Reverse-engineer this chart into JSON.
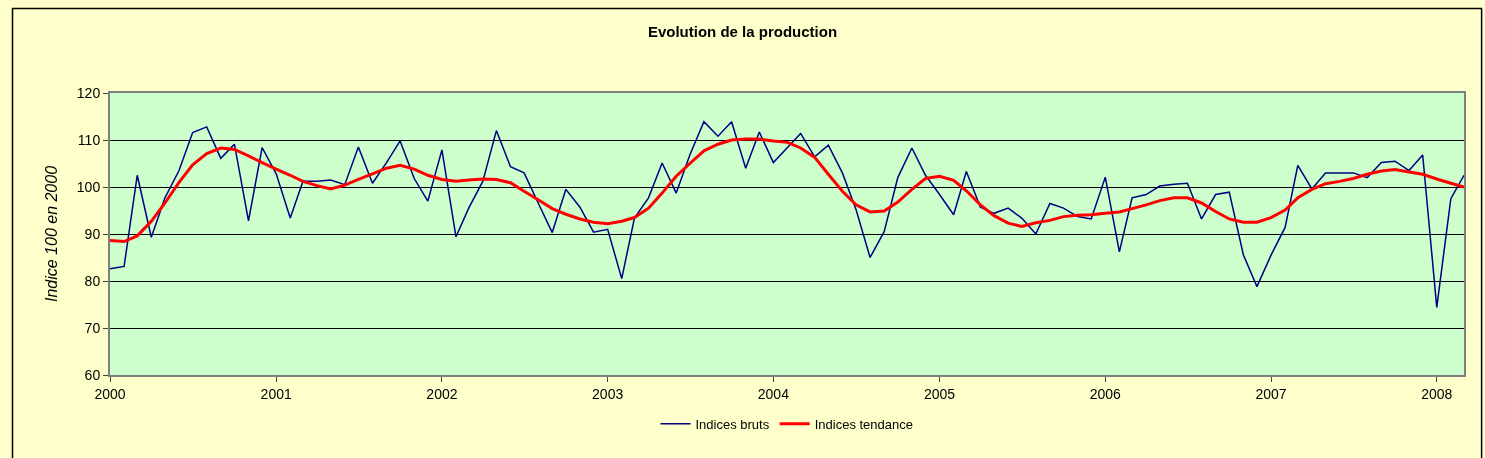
{
  "chart_data": {
    "type": "line",
    "title": "Evolution de la production",
    "ylabel": "Indice 100 en 2000",
    "x": [
      "2000-01",
      "2000-02",
      "2000-03",
      "2000-04",
      "2000-05",
      "2000-06",
      "2000-07",
      "2000-08",
      "2000-09",
      "2000-10",
      "2000-11",
      "2000-12",
      "2001-01",
      "2001-02",
      "2001-03",
      "2001-04",
      "2001-05",
      "2001-06",
      "2001-07",
      "2001-08",
      "2001-09",
      "2001-10",
      "2001-11",
      "2001-12",
      "2002-01",
      "2002-02",
      "2002-03",
      "2002-04",
      "2002-05",
      "2002-06",
      "2002-07",
      "2002-08",
      "2002-09",
      "2002-10",
      "2002-11",
      "2002-12",
      "2003-01",
      "2003-02",
      "2003-03",
      "2003-04",
      "2003-05",
      "2003-06",
      "2003-07",
      "2003-08",
      "2003-09",
      "2003-10",
      "2003-11",
      "2003-12",
      "2004-01",
      "2004-02",
      "2004-03",
      "2004-04",
      "2004-05",
      "2004-06",
      "2004-07",
      "2004-08",
      "2004-09",
      "2004-10",
      "2004-11",
      "2004-12",
      "2005-01",
      "2005-02",
      "2005-03",
      "2005-04",
      "2005-05",
      "2005-06",
      "2005-07",
      "2005-08",
      "2005-09",
      "2005-10",
      "2005-11",
      "2005-12",
      "2006-01",
      "2006-02",
      "2006-03",
      "2006-04",
      "2006-05",
      "2006-06",
      "2006-07",
      "2006-08",
      "2006-09",
      "2006-10",
      "2006-11",
      "2006-12",
      "2007-01",
      "2007-02",
      "2007-03",
      "2007-04",
      "2007-05",
      "2007-06",
      "2007-07",
      "2007-08",
      "2007-09",
      "2007-10",
      "2007-11",
      "2007-12",
      "2008-01",
      "2008-02",
      "2008-03"
    ],
    "series": [
      {
        "name": "Indices bruts",
        "color": "#000080",
        "values": [
          82.6,
          83.1,
          102.5,
          89.3,
          97.7,
          103.5,
          111.6,
          112.8,
          106.1,
          109.1,
          92.8,
          108.4,
          102.8,
          93.4,
          101.2,
          101.2,
          101.5,
          100.5,
          108.5,
          100.8,
          105.2,
          109.8,
          101.8,
          97.0,
          107.9,
          89.4,
          95.5,
          101.2,
          112.0,
          104.3,
          103.0,
          96.6,
          90.3,
          99.5,
          95.7,
          90.4,
          91.0,
          80.5,
          93.4,
          97.7,
          105.1,
          98.7,
          106.8,
          113.9,
          110.8,
          113.9,
          104.0,
          111.7,
          105.2,
          108.4,
          111.4,
          106.4,
          108.9,
          103.0,
          95.2,
          85.0,
          90.5,
          102.0,
          108.3,
          102.5,
          98.4,
          94.1,
          103.3,
          95.7,
          94.4,
          95.5,
          93.4,
          90.0,
          96.5,
          95.5,
          93.7,
          93.2,
          102.1,
          86.2,
          97.7,
          98.4,
          100.2,
          100.6,
          100.8,
          93.2,
          98.4,
          98.9,
          85.6,
          78.8,
          85.5,
          91.4,
          104.6,
          99.6,
          103.0,
          103.0,
          103.0,
          102.0,
          105.2,
          105.5,
          103.5,
          106.8,
          74.4,
          97.5,
          102.5
        ]
      },
      {
        "name": "Indices tendance",
        "color": "#ff0000",
        "values": [
          88.6,
          88.4,
          89.6,
          92.7,
          96.6,
          101.0,
          104.7,
          107.1,
          108.3,
          108.0,
          106.6,
          105.2,
          103.8,
          102.5,
          101.2,
          100.3,
          99.6,
          100.4,
          101.6,
          102.8,
          104.0,
          104.6,
          103.8,
          102.5,
          101.6,
          101.2,
          101.5,
          101.7,
          101.6,
          100.9,
          99.1,
          97.3,
          95.4,
          94.2,
          93.2,
          92.5,
          92.2,
          92.7,
          93.5,
          95.5,
          98.7,
          102.3,
          105.0,
          107.7,
          109.1,
          110.0,
          110.2,
          110.2,
          109.8,
          109.5,
          108.3,
          106.3,
          102.7,
          99.1,
          96.2,
          94.7,
          94.9,
          96.8,
          99.5,
          101.8,
          102.3,
          101.4,
          99.2,
          96.2,
          93.9,
          92.3,
          91.6,
          92.4,
          92.9,
          93.7,
          94.0,
          94.1,
          94.4,
          94.7,
          95.4,
          96.2,
          97.1,
          97.7,
          97.7,
          96.6,
          94.8,
          93.2,
          92.5,
          92.5,
          93.5,
          95.1,
          97.7,
          99.5,
          100.7,
          101.2,
          101.8,
          102.7,
          103.4,
          103.7,
          103.2,
          102.7,
          101.7,
          100.8,
          100.0
        ]
      }
    ],
    "xlim": [
      "2000-01",
      "2008-03"
    ],
    "xticks": [
      {
        "value": "2000-01",
        "label": "2000"
      },
      {
        "value": "2001-01",
        "label": "2001"
      },
      {
        "value": "2002-01",
        "label": "2002"
      },
      {
        "value": "2003-01",
        "label": "2003"
      },
      {
        "value": "2004-01",
        "label": "2004"
      },
      {
        "value": "2005-01",
        "label": "2005"
      },
      {
        "value": "2006-01",
        "label": "2006"
      },
      {
        "value": "2007-01",
        "label": "2007"
      },
      {
        "value": "2008-01",
        "label": "2008"
      }
    ],
    "ylim": [
      60,
      120
    ],
    "yticks": [
      60,
      70,
      80,
      90,
      100,
      110,
      120
    ],
    "grid": "y",
    "legend": "bottom",
    "marker": "none",
    "line_style": "solid"
  }
}
